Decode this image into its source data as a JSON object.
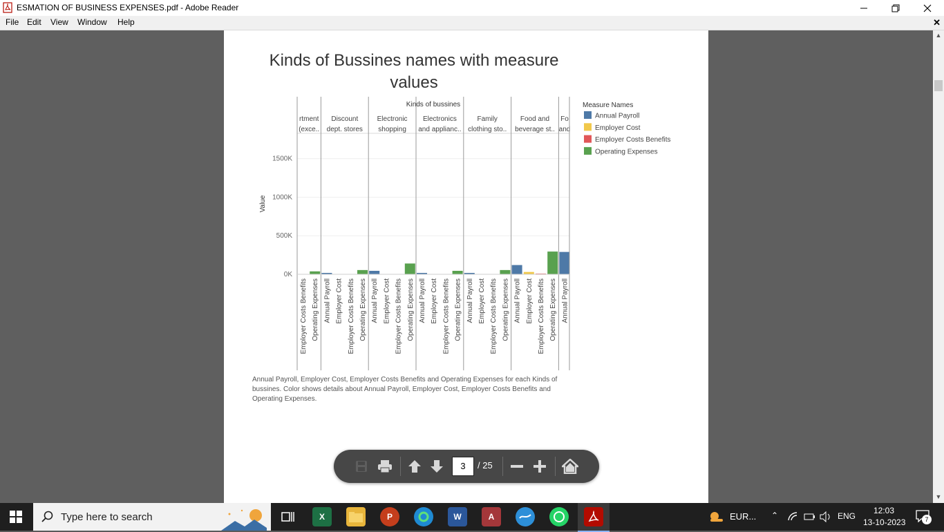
{
  "window": {
    "title": "ESMATION OF BUSINESS EXPENSES.pdf - Adobe Reader"
  },
  "menu": [
    "File",
    "Edit",
    "View",
    "Window",
    "Help"
  ],
  "doc": {
    "chart_title_line1": "Kinds of Bussines names with measure",
    "chart_title_line2": "values",
    "caption": "Annual Payroll, Employer Cost, Employer Costs Benefits and Operating Expenses for each Kinds of bussines.  Color shows details about Annual Payroll, Employer Cost, Employer Costs Benefits and Operating Expenses."
  },
  "chart_data": {
    "type": "bar",
    "column_header": "Kinds of bussines",
    "ylabel": "Value",
    "ylim": [
      0,
      1900000
    ],
    "y_ticks": [
      0,
      500000,
      1000000,
      1500000
    ],
    "y_tick_labels": [
      "0K",
      "500K",
      "1000K",
      "1500K"
    ],
    "legend_title": "Measure Names",
    "legend_position": "right",
    "series": [
      {
        "name": "Annual Payroll",
        "color": "#4e79a7"
      },
      {
        "name": "Employer Cost",
        "color": "#f1c84b"
      },
      {
        "name": "Employer Costs Benefits",
        "color": "#e15759"
      },
      {
        "name": "Operating Expenses",
        "color": "#59a14f"
      }
    ],
    "groups": [
      {
        "name_line1": "rtment",
        "name_line2": "(exce..",
        "bars": [
          {
            "measure": "Employer Costs Benefits",
            "value": 0
          },
          {
            "measure": "Operating Expenses",
            "value": 38000
          }
        ]
      },
      {
        "name_line1": "Discount",
        "name_line2": "dept. stores",
        "bars": [
          {
            "measure": "Annual Payroll",
            "value": 18000
          },
          {
            "measure": "Employer Cost",
            "value": 0
          },
          {
            "measure": "Employer Costs Benefits",
            "value": 0
          },
          {
            "measure": "Operating Expenses",
            "value": 55000
          }
        ]
      },
      {
        "name_line1": "Electronic",
        "name_line2": "shopping",
        "bars": [
          {
            "measure": "Annual Payroll",
            "value": 45000
          },
          {
            "measure": "Employer Cost",
            "value": 0
          },
          {
            "measure": "Employer Costs Benefits",
            "value": 0
          },
          {
            "measure": "Operating Expenses",
            "value": 140000
          }
        ]
      },
      {
        "name_line1": "Electronics",
        "name_line2": "and applianc..",
        "bars": [
          {
            "measure": "Annual Payroll",
            "value": 18000
          },
          {
            "measure": "Employer Cost",
            "value": 0
          },
          {
            "measure": "Employer Costs Benefits",
            "value": 0
          },
          {
            "measure": "Operating Expenses",
            "value": 45000
          }
        ]
      },
      {
        "name_line1": "Family",
        "name_line2": "clothing sto..",
        "bars": [
          {
            "measure": "Annual Payroll",
            "value": 18000
          },
          {
            "measure": "Employer Cost",
            "value": 0
          },
          {
            "measure": "Employer Costs Benefits",
            "value": 0
          },
          {
            "measure": "Operating Expenses",
            "value": 55000
          }
        ]
      },
      {
        "name_line1": "Food and",
        "name_line2": "beverage st..",
        "bars": [
          {
            "measure": "Annual Payroll",
            "value": 120000
          },
          {
            "measure": "Employer Cost",
            "value": 30000
          },
          {
            "measure": "Employer Costs Benefits",
            "value": 8000
          },
          {
            "measure": "Operating Expenses",
            "value": 295000
          }
        ]
      },
      {
        "name_line1": "Fo",
        "name_line2": "and",
        "bars": [
          {
            "measure": "Annual Payroll",
            "value": 290000
          }
        ]
      }
    ]
  },
  "toolbar": {
    "page_current": "3",
    "page_total": "/ 25"
  },
  "taskbar": {
    "search_placeholder": "Type here to search",
    "weather_text": "EUR...",
    "language": "ENG",
    "time": "12:03",
    "date": "13-10-2023",
    "notification_count": "7"
  }
}
